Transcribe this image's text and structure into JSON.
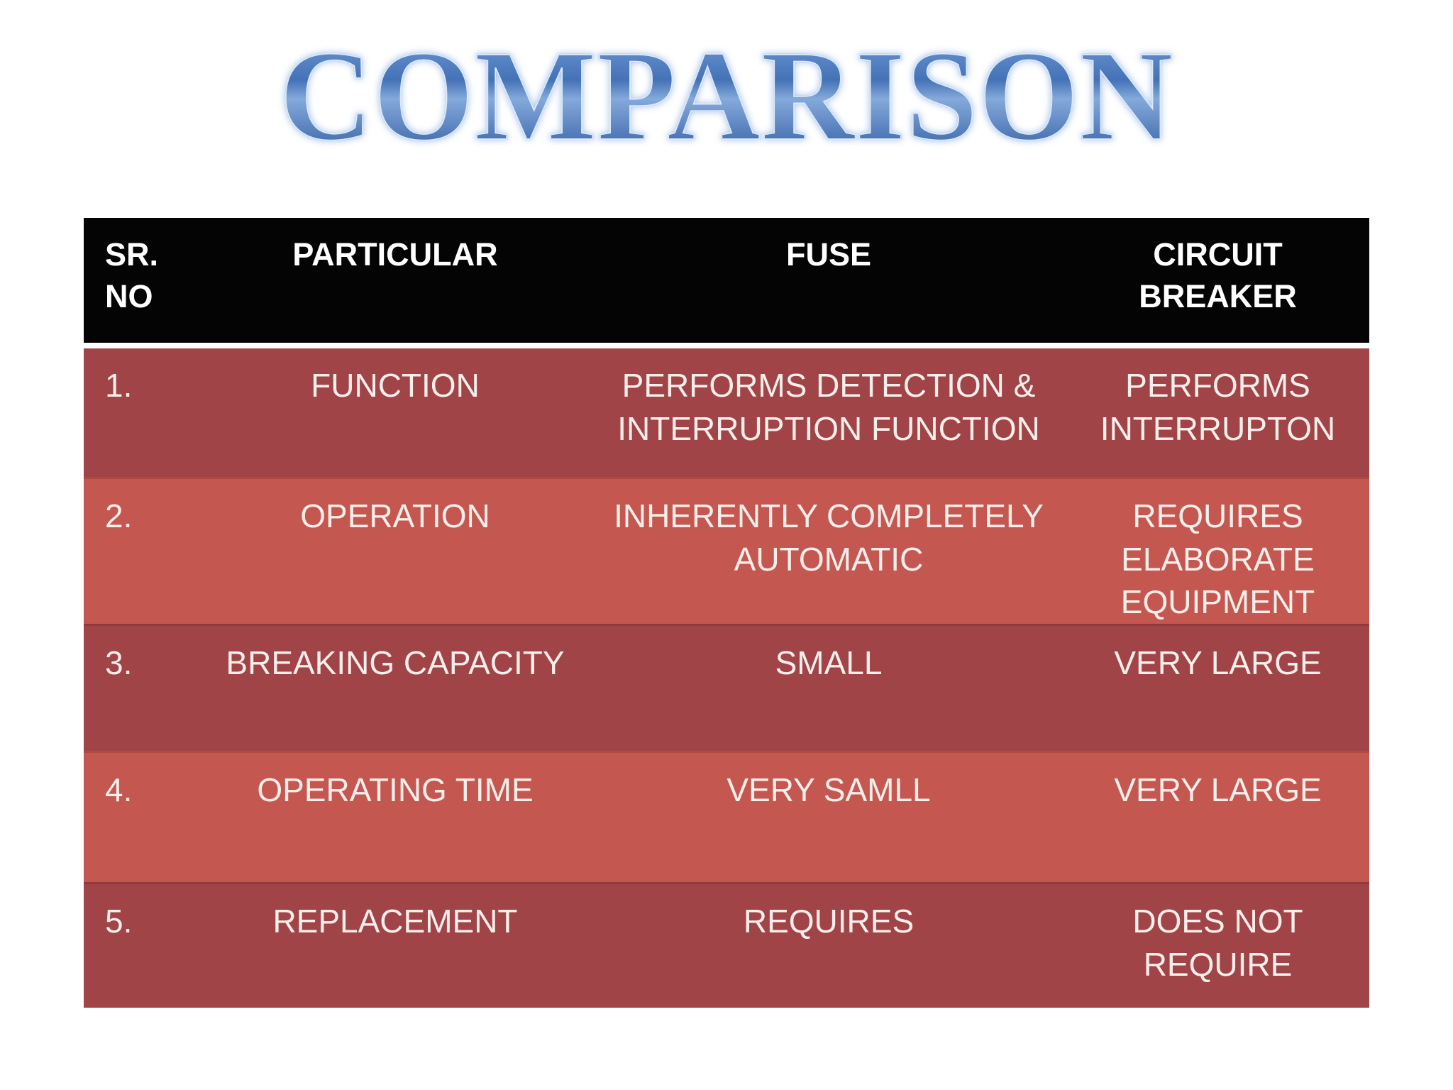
{
  "title": "COMPARISON",
  "colors": {
    "header_bg": "#040404",
    "row_dark": "#a04447",
    "row_light": "#c4574f",
    "header_text": "#ffffff",
    "body_text": "#f8efec",
    "title_blue": "#3e6db3",
    "title_glow": "#dce9f8",
    "page_bg": "#ffffff"
  },
  "table": {
    "headers": [
      "SR. NO",
      "PARTICULAR",
      "FUSE",
      "CIRCUIT BREAKER"
    ],
    "rows": [
      {
        "no": "1.",
        "particular": "FUNCTION",
        "fuse": "PERFORMS DETECTION & INTERRUPTION FUNCTION",
        "breaker": "PERFORMS INTERRUPTON"
      },
      {
        "no": "2.",
        "particular": "OPERATION",
        "fuse": "INHERENTLY COMPLETELY AUTOMATIC",
        "breaker": "REQUIRES ELABORATE EQUIPMENT"
      },
      {
        "no": "3.",
        "particular": "BREAKING CAPACITY",
        "fuse": "SMALL",
        "breaker": "VERY LARGE"
      },
      {
        "no": "4.",
        "particular": "OPERATING TIME",
        "fuse": "VERY SAMLL",
        "breaker": "VERY LARGE"
      },
      {
        "no": "5.",
        "particular": "REPLACEMENT",
        "fuse": "REQUIRES",
        "breaker": "DOES NOT REQUIRE"
      }
    ]
  }
}
